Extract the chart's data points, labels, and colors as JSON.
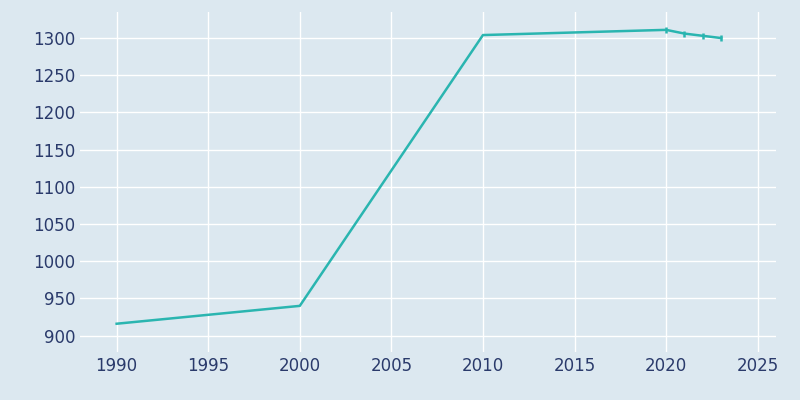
{
  "years": [
    1990,
    2000,
    2010,
    2020,
    2021,
    2022,
    2023
  ],
  "population": [
    916,
    940,
    1304,
    1311,
    1306,
    1303,
    1300
  ],
  "line_color": "#2ab5b0",
  "marker_color": "#2ab5b0",
  "bg_color": "#dce8f0",
  "plot_bg_color": "#dce8f0",
  "grid_color": "#ffffff",
  "tick_color": "#2a3a6b",
  "xlim": [
    1988,
    2026
  ],
  "ylim": [
    878,
    1335
  ],
  "xticks": [
    1990,
    1995,
    2000,
    2005,
    2010,
    2015,
    2020,
    2025
  ],
  "yticks": [
    900,
    950,
    1000,
    1050,
    1100,
    1150,
    1200,
    1250,
    1300
  ],
  "linewidth": 1.8,
  "marker_size": 4,
  "tick_fontsize": 12
}
